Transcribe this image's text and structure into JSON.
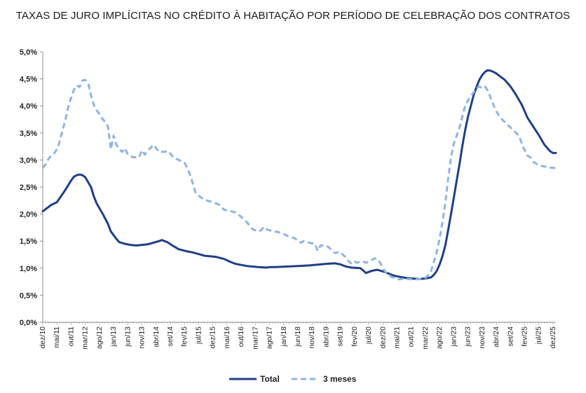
{
  "chart_data": {
    "type": "line",
    "title": "TAXAS DE JURO IMPLÍCITAS NO CRÉDITO À HABITAÇÃO POR PERÍODO DE CELEBRAÇÃO DOS CONTRATOS",
    "xlabel": "",
    "ylabel": "",
    "ylim": [
      0,
      5
    ],
    "y_ticks": [
      "0,0%",
      "0,5%",
      "1,0%",
      "1,5%",
      "2,0%",
      "2,5%",
      "3,0%",
      "3,5%",
      "4,0%",
      "4,5%",
      "5,0%"
    ],
    "x_ticks": [
      "dez/10",
      "mai/11",
      "out/11",
      "mar/12",
      "ago/12",
      "jan/13",
      "jun/13",
      "nov/13",
      "abr/14",
      "set/14",
      "fev/15",
      "jul/15",
      "dez/15",
      "mai/16",
      "out/16",
      "mar/17",
      "ago/17",
      "jan/18",
      "jun/18",
      "nov/18",
      "abr/19",
      "set/19",
      "fev/20",
      "jul/20",
      "dez/20",
      "mai/21",
      "out/21",
      "mar/22",
      "ago/22",
      "jan/23",
      "jun/23",
      "nov/23",
      "abr/24",
      "set/24",
      "fev/25",
      "jul/25",
      "dez/25"
    ],
    "x_tick_index": [
      0,
      5,
      10,
      15,
      20,
      25,
      30,
      35,
      40,
      45,
      50,
      55,
      60,
      65,
      70,
      75,
      80,
      85,
      90,
      95,
      100,
      105,
      110,
      115,
      120,
      125,
      130,
      135,
      140,
      145,
      150,
      155,
      160,
      165,
      170,
      175,
      180
    ],
    "grid": false,
    "legend": "bottom-center",
    "series": [
      {
        "name": "Total",
        "color": "#1f3f86",
        "style": "solid",
        "points": [
          [
            0,
            2.05
          ],
          [
            3,
            2.17
          ],
          [
            5,
            2.22
          ],
          [
            8,
            2.45
          ],
          [
            10,
            2.62
          ],
          [
            11,
            2.69
          ],
          [
            12,
            2.72
          ],
          [
            13,
            2.73
          ],
          [
            14,
            2.72
          ],
          [
            15,
            2.68
          ],
          [
            17,
            2.5
          ],
          [
            18,
            2.33
          ],
          [
            19,
            2.2
          ],
          [
            21,
            2.02
          ],
          [
            23,
            1.82
          ],
          [
            24,
            1.68
          ],
          [
            26,
            1.54
          ],
          [
            27,
            1.48
          ],
          [
            29,
            1.45
          ],
          [
            31,
            1.43
          ],
          [
            33,
            1.42
          ],
          [
            35,
            1.43
          ],
          [
            37,
            1.44
          ],
          [
            39,
            1.47
          ],
          [
            41,
            1.5
          ],
          [
            42,
            1.52
          ],
          [
            44,
            1.48
          ],
          [
            46,
            1.41
          ],
          [
            48,
            1.35
          ],
          [
            51,
            1.31
          ],
          [
            53,
            1.29
          ],
          [
            55,
            1.26
          ],
          [
            57,
            1.23
          ],
          [
            61,
            1.21
          ],
          [
            64,
            1.17
          ],
          [
            66,
            1.12
          ],
          [
            68,
            1.08
          ],
          [
            70,
            1.06
          ],
          [
            72,
            1.04
          ],
          [
            76,
            1.02
          ],
          [
            79,
            1.01
          ],
          [
            80,
            1.02
          ],
          [
            82,
            1.02
          ],
          [
            86,
            1.03
          ],
          [
            90,
            1.04
          ],
          [
            94,
            1.05
          ],
          [
            98,
            1.07
          ],
          [
            100,
            1.08
          ],
          [
            103,
            1.09
          ],
          [
            105,
            1.07
          ],
          [
            107,
            1.03
          ],
          [
            109,
            1.01
          ],
          [
            112,
            1.0
          ],
          [
            113,
            0.96
          ],
          [
            114,
            0.91
          ],
          [
            116,
            0.95
          ],
          [
            118,
            0.97
          ],
          [
            120,
            0.94
          ],
          [
            122,
            0.9
          ],
          [
            124,
            0.86
          ],
          [
            126,
            0.84
          ],
          [
            128,
            0.82
          ],
          [
            130,
            0.81
          ],
          [
            133,
            0.8
          ],
          [
            135,
            0.81
          ],
          [
            137,
            0.83
          ],
          [
            138,
            0.88
          ],
          [
            139,
            0.95
          ],
          [
            140,
            1.07
          ],
          [
            141,
            1.22
          ],
          [
            142,
            1.42
          ],
          [
            143,
            1.7
          ],
          [
            144,
            2.0
          ],
          [
            145,
            2.3
          ],
          [
            146,
            2.62
          ],
          [
            147,
            2.92
          ],
          [
            148,
            3.25
          ],
          [
            149,
            3.55
          ],
          [
            150,
            3.8
          ],
          [
            151,
            4.0
          ],
          [
            152,
            4.2
          ],
          [
            153,
            4.35
          ],
          [
            154,
            4.48
          ],
          [
            155,
            4.57
          ],
          [
            156,
            4.63
          ],
          [
            157,
            4.66
          ],
          [
            158,
            4.65
          ],
          [
            159,
            4.63
          ],
          [
            160,
            4.6
          ],
          [
            161,
            4.56
          ],
          [
            163,
            4.48
          ],
          [
            165,
            4.36
          ],
          [
            167,
            4.2
          ],
          [
            169,
            4.02
          ],
          [
            171,
            3.78
          ],
          [
            173,
            3.62
          ],
          [
            175,
            3.46
          ],
          [
            177,
            3.28
          ],
          [
            179,
            3.16
          ],
          [
            180,
            3.13
          ],
          [
            181,
            3.13
          ]
        ]
      },
      {
        "name": "3 meses",
        "color": "#8eb4e3",
        "style": "dashed",
        "points": [
          [
            0,
            2.85
          ],
          [
            1,
            2.92
          ],
          [
            2,
            3.02
          ],
          [
            3,
            3.08
          ],
          [
            4,
            3.12
          ],
          [
            5,
            3.2
          ],
          [
            6,
            3.35
          ],
          [
            7,
            3.55
          ],
          [
            8,
            3.75
          ],
          [
            9,
            3.98
          ],
          [
            10,
            4.15
          ],
          [
            11,
            4.3
          ],
          [
            12,
            4.38
          ],
          [
            13,
            4.35
          ],
          [
            14,
            4.47
          ],
          [
            15,
            4.48
          ],
          [
            16,
            4.43
          ],
          [
            17,
            4.2
          ],
          [
            18,
            4.02
          ],
          [
            19,
            3.92
          ],
          [
            20,
            3.85
          ],
          [
            21,
            3.77
          ],
          [
            22,
            3.7
          ],
          [
            23,
            3.62
          ],
          [
            24,
            3.2
          ],
          [
            25,
            3.45
          ],
          [
            26,
            3.28
          ],
          [
            27,
            3.2
          ],
          [
            28,
            3.15
          ],
          [
            29,
            3.22
          ],
          [
            30,
            3.1
          ],
          [
            31,
            3.07
          ],
          [
            32,
            3.05
          ],
          [
            34,
            3.05
          ],
          [
            35,
            3.18
          ],
          [
            36,
            3.1
          ],
          [
            37,
            3.18
          ],
          [
            38,
            3.22
          ],
          [
            39,
            3.28
          ],
          [
            40,
            3.22
          ],
          [
            41,
            3.15
          ],
          [
            43,
            3.15
          ],
          [
            44,
            3.17
          ],
          [
            45,
            3.12
          ],
          [
            46,
            3.05
          ],
          [
            48,
            3.0
          ],
          [
            50,
            2.95
          ],
          [
            51,
            2.85
          ],
          [
            52,
            2.72
          ],
          [
            53,
            2.55
          ],
          [
            54,
            2.38
          ],
          [
            56,
            2.3
          ],
          [
            58,
            2.25
          ],
          [
            60,
            2.22
          ],
          [
            62,
            2.18
          ],
          [
            64,
            2.08
          ],
          [
            66,
            2.06
          ],
          [
            68,
            2.03
          ],
          [
            70,
            1.95
          ],
          [
            72,
            1.85
          ],
          [
            74,
            1.72
          ],
          [
            76,
            1.68
          ],
          [
            77,
            1.7
          ],
          [
            78,
            1.76
          ],
          [
            79,
            1.72
          ],
          [
            81,
            1.68
          ],
          [
            83,
            1.67
          ],
          [
            85,
            1.63
          ],
          [
            87,
            1.58
          ],
          [
            89,
            1.55
          ],
          [
            90,
            1.5
          ],
          [
            91,
            1.47
          ],
          [
            92,
            1.5
          ],
          [
            94,
            1.47
          ],
          [
            96,
            1.45
          ],
          [
            97,
            1.32
          ],
          [
            98,
            1.42
          ],
          [
            100,
            1.42
          ],
          [
            101,
            1.38
          ],
          [
            103,
            1.28
          ],
          [
            105,
            1.3
          ],
          [
            106,
            1.24
          ],
          [
            107,
            1.2
          ],
          [
            108,
            1.12
          ],
          [
            109,
            1.08
          ],
          [
            110,
            1.12
          ],
          [
            111,
            1.1
          ],
          [
            112,
            1.13
          ],
          [
            113,
            1.12
          ],
          [
            114,
            1.1
          ],
          [
            115,
            1.12
          ],
          [
            116,
            1.15
          ],
          [
            117,
            1.18
          ],
          [
            118,
            1.17
          ],
          [
            119,
            1.1
          ],
          [
            120,
            1.0
          ],
          [
            121,
            0.92
          ],
          [
            122,
            0.88
          ],
          [
            123,
            0.84
          ],
          [
            124,
            0.82
          ],
          [
            125,
            0.79
          ],
          [
            127,
            0.8
          ],
          [
            129,
            0.8
          ],
          [
            131,
            0.79
          ],
          [
            133,
            0.8
          ],
          [
            134,
            0.8
          ],
          [
            135,
            0.82
          ],
          [
            136,
            0.87
          ],
          [
            137,
            0.95
          ],
          [
            138,
            1.12
          ],
          [
            139,
            1.3
          ],
          [
            140,
            1.55
          ],
          [
            141,
            1.85
          ],
          [
            142,
            2.2
          ],
          [
            143,
            2.65
          ],
          [
            144,
            3.05
          ],
          [
            145,
            3.3
          ],
          [
            146,
            3.45
          ],
          [
            147,
            3.6
          ],
          [
            148,
            3.8
          ],
          [
            149,
            4.0
          ],
          [
            150,
            4.1
          ],
          [
            151,
            4.18
          ],
          [
            152,
            4.25
          ],
          [
            153,
            4.33
          ],
          [
            154,
            4.36
          ],
          [
            155,
            4.33
          ],
          [
            156,
            4.36
          ],
          [
            157,
            4.28
          ],
          [
            158,
            4.15
          ],
          [
            159,
            4.02
          ],
          [
            160,
            3.9
          ],
          [
            161,
            3.82
          ],
          [
            162,
            3.75
          ],
          [
            164,
            3.65
          ],
          [
            166,
            3.55
          ],
          [
            168,
            3.45
          ],
          [
            169,
            3.3
          ],
          [
            170,
            3.18
          ],
          [
            171,
            3.08
          ],
          [
            172,
            3.05
          ],
          [
            173,
            2.97
          ],
          [
            175,
            2.9
          ],
          [
            177,
            2.88
          ],
          [
            179,
            2.86
          ],
          [
            181,
            2.85
          ]
        ]
      }
    ]
  }
}
